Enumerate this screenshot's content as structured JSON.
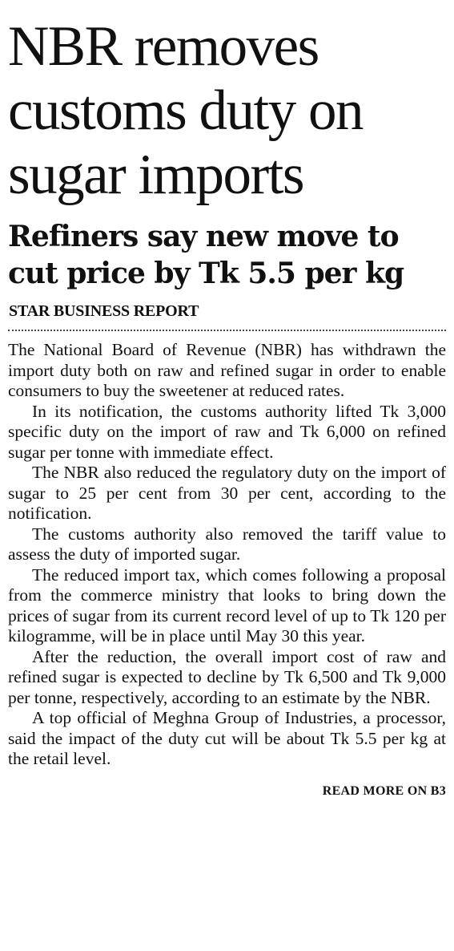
{
  "article": {
    "headline": "NBR removes customs duty on sugar imports",
    "subheadline": "Refiners say new move to cut price by Tk 5.5 per kg",
    "byline": "STAR BUSINESS REPORT",
    "paragraphs": [
      "The National Board of Revenue (NBR) has withdrawn the import duty both on raw and refined sugar in order to enable consumers to buy the sweetener at reduced rates.",
      "In its notification, the customs authority lifted Tk 3,000 specific duty on the import of raw and Tk 6,000 on refined sugar per tonne with immediate effect.",
      "The NBR also reduced the regulatory duty on the import of sugar to 25 per cent from 30 per cent, according to the notification.",
      "The customs authority also removed the tariff value to assess the duty of imported sugar.",
      "The reduced import tax, which comes following a proposal from the commerce ministry that looks to bring down the prices of sugar from its current record level of up to Tk 120 per kilogramme, will be in place until May 30 this year.",
      "After the reduction, the overall import cost of raw and refined sugar is expected to decline by Tk 6,500 and Tk 9,000 per tonne, respectively, according to an estimate by the NBR.",
      "A top official of Meghna Group of Industries, a processor, said the impact of the duty cut will be about Tk 5.5 per kg at the retail level."
    ],
    "read_more": "READ MORE ON B3"
  }
}
